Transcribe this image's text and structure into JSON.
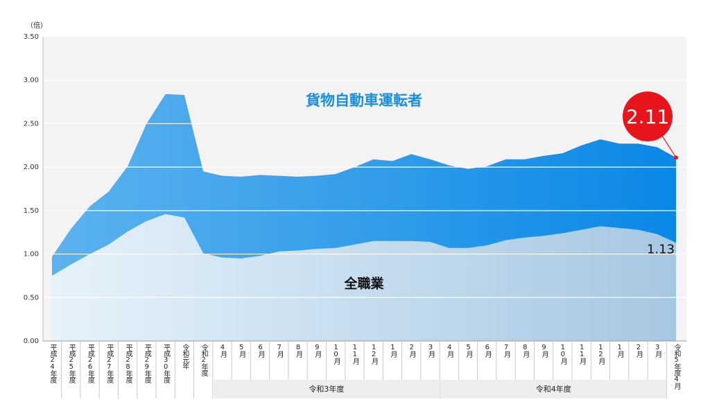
{
  "chart_data": {
    "type": "area",
    "ylabel": "（倍）",
    "categories": [
      "平成24年度",
      "平成25年度",
      "平成26年度",
      "平成27年度",
      "平成28年度",
      "平成29年度",
      "平成30年度",
      "令和元年",
      "令和2年度",
      "4月",
      "5月",
      "6月",
      "7月",
      "8月",
      "9月",
      "10月",
      "11月",
      "12月",
      "1月",
      "2月",
      "3月",
      "4月",
      "5月",
      "6月",
      "7月",
      "8月",
      "9月",
      "10月",
      "11月",
      "12月",
      "1月",
      "2月",
      "3月",
      "令和5年度4月"
    ],
    "group_labels": [
      "令和3年度",
      "令和4年度"
    ],
    "series": [
      {
        "name": "貨物自動車運転者",
        "color": "#0a88e6",
        "values": [
          0.97,
          1.29,
          1.55,
          1.72,
          2.01,
          2.5,
          2.84,
          2.83,
          1.95,
          1.9,
          1.89,
          1.91,
          1.9,
          1.89,
          1.9,
          1.92,
          2.0,
          2.09,
          2.07,
          2.15,
          2.09,
          2.02,
          1.98,
          2.01,
          2.09,
          2.09,
          2.13,
          2.16,
          2.25,
          2.32,
          2.27,
          2.27,
          2.23,
          2.11
        ]
      },
      {
        "name": "全職業",
        "color": "#a6c7e2",
        "values": [
          0.75,
          0.88,
          1.0,
          1.11,
          1.26,
          1.38,
          1.46,
          1.42,
          1.01,
          0.96,
          0.95,
          0.98,
          1.03,
          1.04,
          1.06,
          1.07,
          1.11,
          1.15,
          1.15,
          1.15,
          1.14,
          1.07,
          1.07,
          1.1,
          1.16,
          1.19,
          1.21,
          1.24,
          1.28,
          1.32,
          1.3,
          1.28,
          1.23,
          1.13
        ]
      }
    ],
    "ylim": [
      0,
      3.5
    ],
    "yticks": [
      {
        "value": 0,
        "label": "0.00"
      },
      {
        "value": 0.5,
        "label": "0.50"
      },
      {
        "value": 1,
        "label": "1.00"
      },
      {
        "value": 1.5,
        "label": "1.50"
      },
      {
        "value": 2,
        "label": "2.00"
      },
      {
        "value": 2.5,
        "label": "2.50"
      },
      {
        "value": 3,
        "label": "3.00"
      },
      {
        "value": 3.5,
        "label": "3.50"
      }
    ],
    "grid": true
  }
}
